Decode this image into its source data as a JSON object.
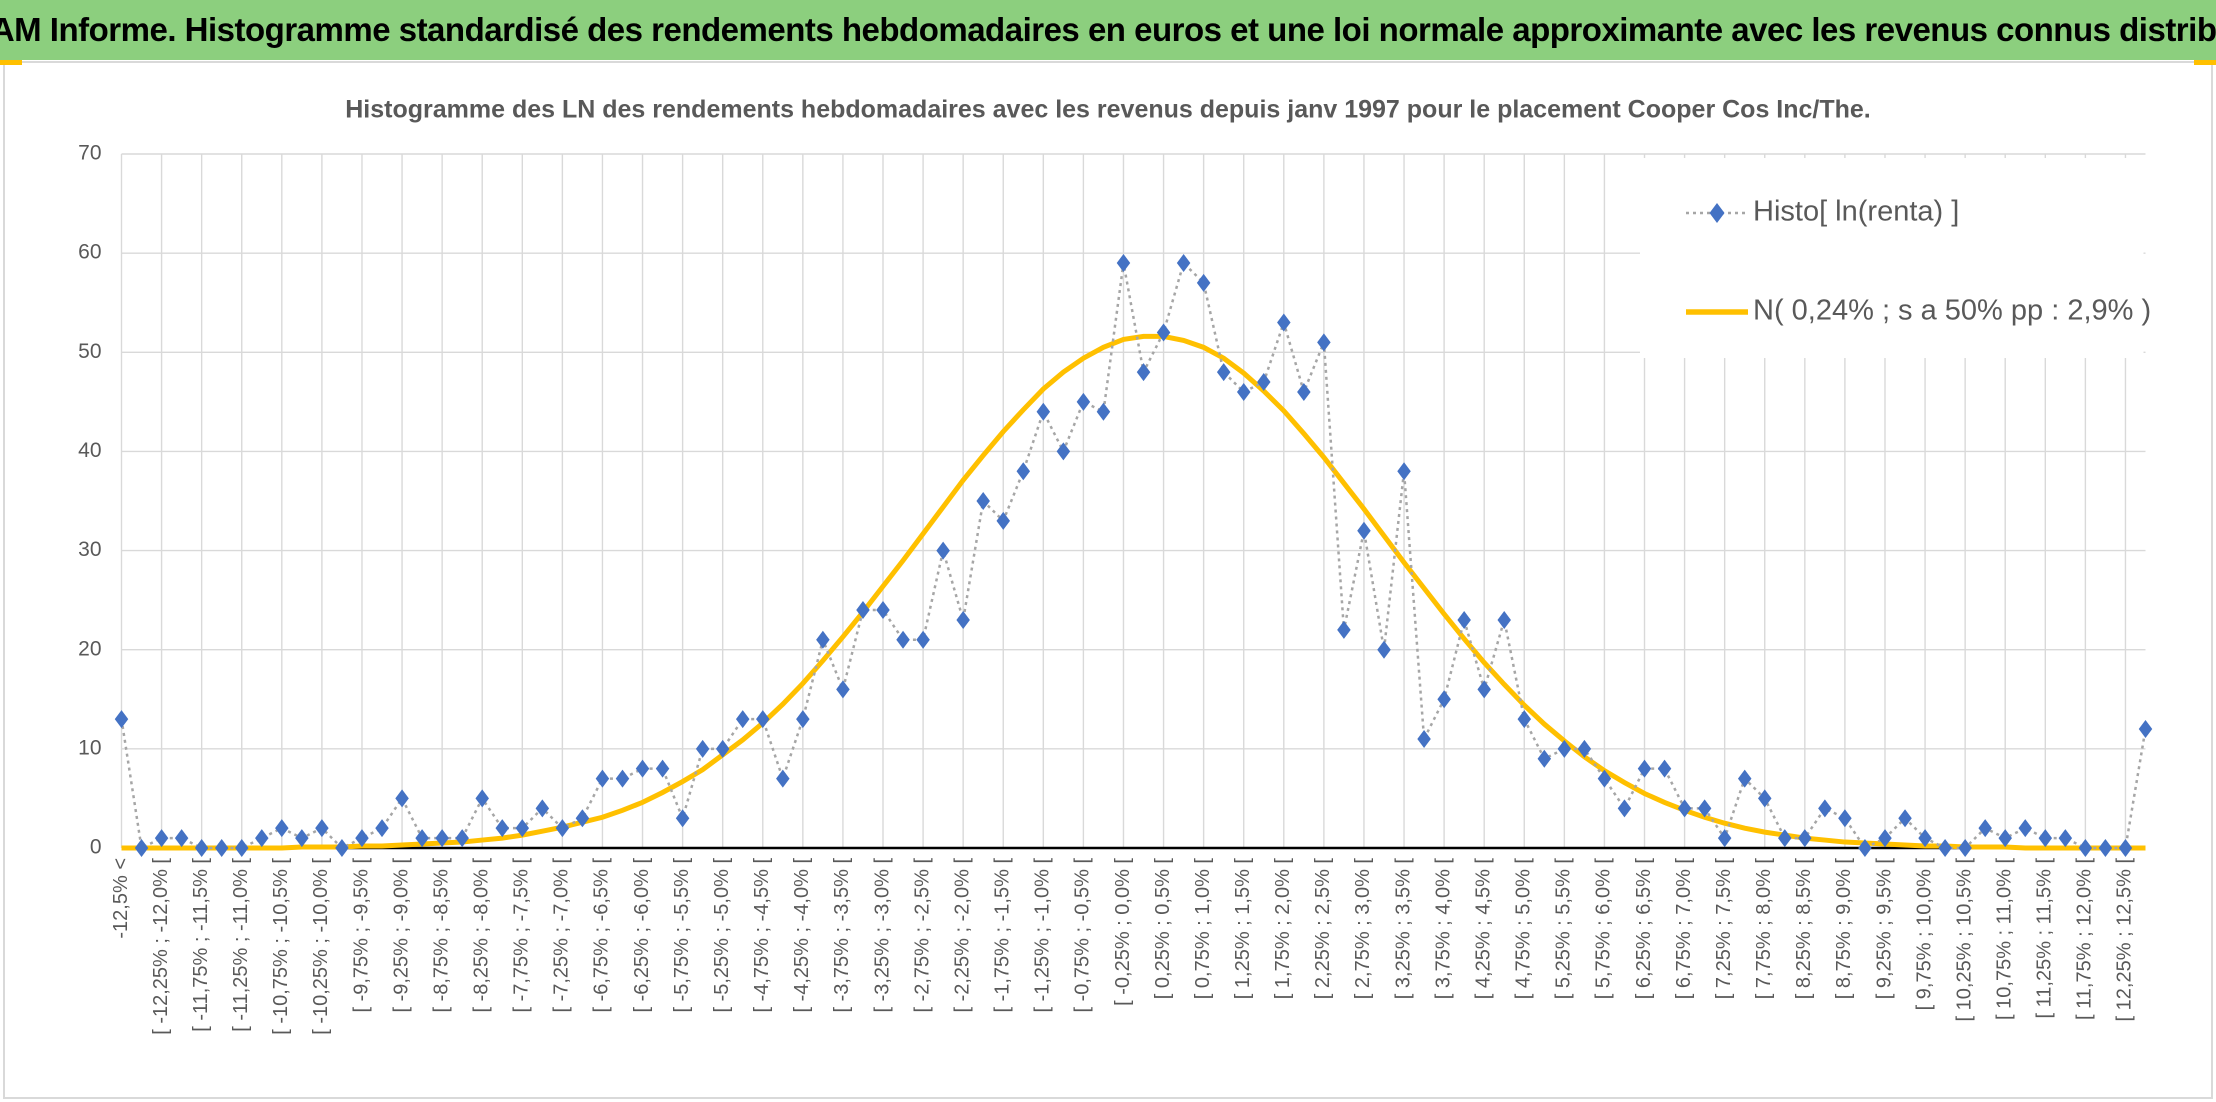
{
  "header": {
    "title": "ADAM Informe. Histogramme standardisé des rendements hebdomadaires en euros et une loi normale approximante avec les revenus connus distribués"
  },
  "chart_data": {
    "type": "line",
    "title": "Histogramme des LN des rendements hebdomadaires avec les revenus depuis janv 1997 pour le placement Cooper Cos Inc/The.",
    "categories": [
      "-12,5% <",
      null,
      "[ -12,25% ; -12,0% [",
      null,
      "[ -11,75% ; -11,5% [",
      null,
      "[ -11,25% ; -11,0% [",
      null,
      "[ -10,75% ; -10,5% [",
      null,
      "[ -10,25% ; -10,0% [",
      null,
      "[ -9,75% ; -9,5% [",
      null,
      "[ -9,25% ; -9,0% [",
      null,
      "[ -8,75% ; -8,5% [",
      null,
      "[ -8,25% ; -8,0% [",
      null,
      "[ -7,75% ; -7,5% [",
      null,
      "[ -7,25% ; -7,0% [",
      null,
      "[ -6,75% ; -6,5% [",
      null,
      "[ -6,25% ; -6,0% [",
      null,
      "[ -5,75% ; -5,5% [",
      null,
      "[ -5,25% ; -5,0% [",
      null,
      "[ -4,75% ; -4,5% [",
      null,
      "[ -4,25% ; -4,0% [",
      null,
      "[ -3,75% ; -3,5% [",
      null,
      "[ -3,25% ; -3,0% [",
      null,
      "[ -2,75% ; -2,5% [",
      null,
      "[ -2,25% ; -2,0% [",
      null,
      "[ -1,75% ; -1,5% [",
      null,
      "[ -1,25% ; -1,0% [",
      null,
      "[ -0,75% ; -0,5% [",
      null,
      "[ -0,25% ; 0,0% [",
      null,
      "[ 0,25% ; 0,5% [",
      null,
      "[ 0,75% ; 1,0% [",
      null,
      "[ 1,25% ; 1,5% [",
      null,
      "[ 1,75% ; 2,0% [",
      null,
      "[ 2,25% ; 2,5% [",
      null,
      "[ 2,75% ; 3,0% [",
      null,
      "[ 3,25% ; 3,5% [",
      null,
      "[ 3,75% ; 4,0% [",
      null,
      "[ 4,25% ; 4,5% [",
      null,
      "[ 4,75% ; 5,0% [",
      null,
      "[ 5,25% ; 5,5% [",
      null,
      "[ 5,75% ; 6,0% [",
      null,
      "[ 6,25% ; 6,5% [",
      null,
      "[ 6,75% ; 7,0% [",
      null,
      "[ 7,25% ; 7,5% [",
      null,
      "[ 7,75% ; 8,0% [",
      null,
      "[ 8,25% ; 8,5% [",
      null,
      "[ 8,75% ; 9,0% [",
      null,
      "[ 9,25% ; 9,5% [",
      null,
      "[ 9,75% ; 10,0% [",
      null,
      "[ 10,25% ; 10,5% [",
      null,
      "[ 10,75% ; 11,0% [",
      null,
      "[ 11,25% ; 11,5% [",
      null,
      "[ 11,75% ; 12,0% [",
      null,
      "[ 12,25% ; 12,5% [",
      null
    ],
    "series": [
      {
        "name": "Histo[ ln(renta) ]",
        "color": "#4472c4",
        "line_color": "#a6a6a6",
        "marker": "diamond",
        "values": [
          13,
          0,
          1,
          1,
          0,
          0,
          0,
          1,
          2,
          1,
          2,
          0,
          1,
          2,
          5,
          1,
          1,
          1,
          5,
          2,
          2,
          4,
          2,
          3,
          7,
          7,
          8,
          8,
          3,
          10,
          10,
          13,
          13,
          7,
          13,
          21,
          16,
          24,
          24,
          21,
          21,
          30,
          23,
          35,
          33,
          38,
          44,
          40,
          45,
          44,
          59,
          48,
          52,
          59,
          57,
          48,
          46,
          47,
          53,
          46,
          51,
          22,
          32,
          20,
          38,
          11,
          15,
          23,
          16,
          23,
          13,
          9,
          10,
          10,
          7,
          4,
          8,
          8,
          4,
          4,
          1,
          7,
          5,
          1,
          1,
          4,
          3,
          0,
          1,
          3,
          1,
          0,
          0,
          2,
          1,
          2,
          1,
          1,
          0,
          0,
          0,
          12
        ]
      },
      {
        "name": "N( 0,24% ; s a 50% pp : 2,9% )",
        "color": "#ffc000",
        "values": [
          0,
          0,
          0,
          0,
          0,
          0,
          0,
          0,
          0,
          0.1,
          0.1,
          0.1,
          0.2,
          0.2,
          0.3,
          0.4,
          0.5,
          0.6,
          0.8,
          1.0,
          1.3,
          1.7,
          2.1,
          2.6,
          3.1,
          3.8,
          4.6,
          5.6,
          6.7,
          7.9,
          9.4,
          10.9,
          12.6,
          14.5,
          16.6,
          18.9,
          21.3,
          23.8,
          26.4,
          29.0,
          31.7,
          34.4,
          37.1,
          39.6,
          42.0,
          44.2,
          46.3,
          48.0,
          49.4,
          50.5,
          51.3,
          51.6,
          51.6,
          51.2,
          50.5,
          49.4,
          47.9,
          46.1,
          44.1,
          41.8,
          39.4,
          36.8,
          34.2,
          31.5,
          28.8,
          26.2,
          23.6,
          21.1,
          18.7,
          16.5,
          14.4,
          12.5,
          10.8,
          9.2,
          7.8,
          6.6,
          5.5,
          4.6,
          3.8,
          3.1,
          2.5,
          2.0,
          1.6,
          1.3,
          1.0,
          0.8,
          0.6,
          0.5,
          0.4,
          0.3,
          0.2,
          0.2,
          0.1,
          0.1,
          0.1,
          0,
          0,
          0,
          0,
          0,
          0,
          0
        ]
      }
    ],
    "ylim": [
      0,
      70
    ],
    "yticks": [
      0,
      10,
      20,
      30,
      40,
      50,
      60,
      70
    ],
    "grid": true,
    "legend": "upper right"
  }
}
